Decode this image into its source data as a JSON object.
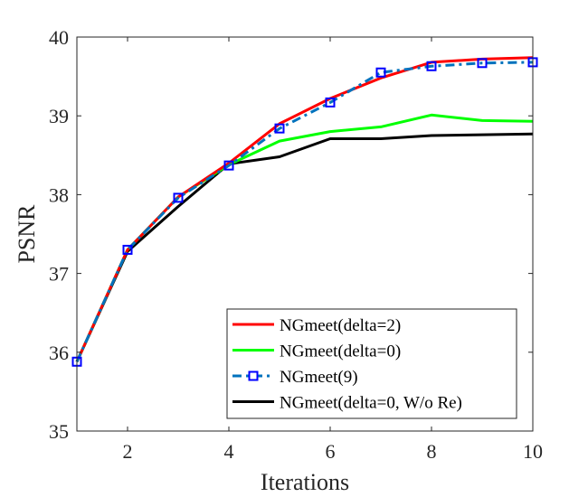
{
  "chart_data": {
    "type": "line",
    "title": "",
    "xlabel": "Iterations",
    "ylabel": "PSNR",
    "xlim": [
      1,
      10
    ],
    "ylim": [
      35,
      40
    ],
    "xticks": [
      2,
      4,
      6,
      8,
      10
    ],
    "yticks": [
      35,
      36,
      37,
      38,
      39,
      40
    ],
    "xtick_labels": [
      "2",
      "4",
      "6",
      "8",
      "10"
    ],
    "ytick_labels": [
      "35",
      "36",
      "37",
      "38",
      "39",
      "40"
    ],
    "grid": false,
    "legend_position": "bottom-right",
    "x": [
      1,
      2,
      3,
      4,
      5,
      6,
      7,
      8,
      9,
      10
    ],
    "series": [
      {
        "name": "NGmeet(delta=2)",
        "color": "#ff0000",
        "style": "solid",
        "marker": "none",
        "values": [
          35.88,
          37.3,
          37.97,
          38.4,
          38.9,
          39.22,
          39.48,
          39.68,
          39.72,
          39.74
        ]
      },
      {
        "name": "NGmeet(delta=0)",
        "color": "#00ff00",
        "style": "solid",
        "marker": "none",
        "values": [
          35.88,
          37.3,
          37.97,
          38.38,
          38.68,
          38.8,
          38.86,
          39.01,
          38.94,
          38.93
        ]
      },
      {
        "name": "NGmeet(9)",
        "color": "#0072bd",
        "marker_color": "#0000ff",
        "style": "dashdot",
        "marker": "square",
        "values": [
          35.88,
          37.3,
          37.96,
          38.37,
          38.84,
          39.17,
          39.55,
          39.63,
          39.67,
          39.68
        ]
      },
      {
        "name": "NGmeet(delta=0, W/o Re)",
        "color": "#000000",
        "style": "solid",
        "marker": "none",
        "values": [
          35.88,
          37.28,
          37.85,
          38.39,
          38.48,
          38.71,
          38.71,
          38.75,
          38.76,
          38.77
        ]
      }
    ]
  }
}
